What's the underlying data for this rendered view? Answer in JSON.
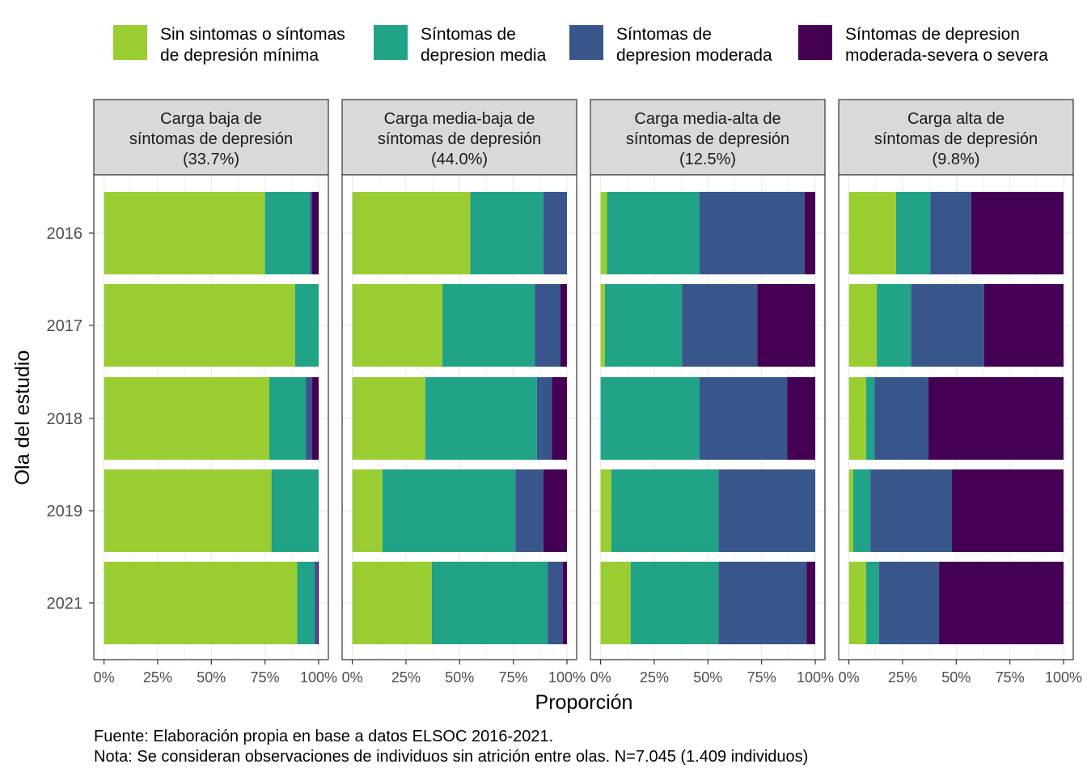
{
  "chart_data": {
    "type": "bar",
    "orientation": "horizontal",
    "stacked": "percent",
    "xlabel": "Proporción",
    "ylabel": "Ola del estudio",
    "xlim": [
      0,
      1
    ],
    "x_ticks": [
      "0%",
      "25%",
      "50%",
      "75%",
      "100%"
    ],
    "categories": [
      "2016",
      "2017",
      "2018",
      "2019",
      "2021"
    ],
    "legend": {
      "position": "top",
      "items": [
        {
          "label_line1": "Sin sintomas o síntomas",
          "label_line2": "de depresión mínima",
          "color": "#9ACD32"
        },
        {
          "label_line1": "Síntomas de",
          "label_line2": "depresion media",
          "color": "#20A387"
        },
        {
          "label_line1": "Síntomas de",
          "label_line2": "depresion moderada",
          "color": "#39568C"
        },
        {
          "label_line1": "Síntomas de depresion",
          "label_line2": "moderada-severa o severa",
          "color": "#440154"
        }
      ]
    },
    "facets": [
      {
        "title_lines": [
          "Carga baja de",
          "síntomas de depresión",
          "(33.7%)"
        ],
        "rows": [
          [
            0.75,
            0.21,
            0.01,
            0.03
          ],
          [
            0.89,
            0.11,
            0.0,
            0.0
          ],
          [
            0.77,
            0.17,
            0.03,
            0.03
          ],
          [
            0.78,
            0.22,
            0.0,
            0.0
          ],
          [
            0.9,
            0.08,
            0.015,
            0.005
          ]
        ]
      },
      {
        "title_lines": [
          "Carga media-baja de",
          "síntomas de depresión",
          "(44.0%)"
        ],
        "rows": [
          [
            0.55,
            0.34,
            0.11,
            0.0
          ],
          [
            0.42,
            0.43,
            0.12,
            0.03
          ],
          [
            0.34,
            0.52,
            0.07,
            0.07
          ],
          [
            0.14,
            0.62,
            0.13,
            0.11
          ],
          [
            0.37,
            0.54,
            0.07,
            0.02
          ]
        ]
      },
      {
        "title_lines": [
          "Carga media-alta de",
          "síntomas de depresión",
          "(12.5%)"
        ],
        "rows": [
          [
            0.03,
            0.43,
            0.49,
            0.05
          ],
          [
            0.02,
            0.36,
            0.35,
            0.27
          ],
          [
            0.0,
            0.46,
            0.41,
            0.13
          ],
          [
            0.05,
            0.5,
            0.45,
            0.0
          ],
          [
            0.14,
            0.41,
            0.41,
            0.04
          ]
        ]
      },
      {
        "title_lines": [
          "Carga alta de",
          "síntomas de depresión",
          "(9.8%)"
        ],
        "rows": [
          [
            0.22,
            0.16,
            0.19,
            0.43
          ],
          [
            0.13,
            0.16,
            0.34,
            0.37
          ],
          [
            0.08,
            0.04,
            0.25,
            0.63
          ],
          [
            0.02,
            0.08,
            0.38,
            0.52
          ],
          [
            0.08,
            0.06,
            0.28,
            0.58
          ]
        ]
      }
    ],
    "caption_lines": [
      "Fuente: Elaboración propia en base a datos ELSOC 2016-2021.",
      "Nota: Se consideran observaciones de individuos sin atrición entre olas. N=7.045 (1.409 individuos)"
    ]
  }
}
